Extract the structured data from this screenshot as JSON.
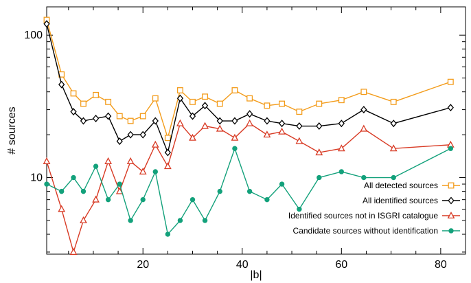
{
  "chart_data": {
    "type": "line",
    "xlabel": "|b|",
    "ylabel": "# sources",
    "xlim": [
      0.6,
      85
    ],
    "ylim": [
      2.9,
      158
    ],
    "yscale": "log",
    "grid": false,
    "legend_placement": "bottom-right",
    "x_ticks": [
      20,
      40,
      60,
      80
    ],
    "y_ticks": [
      10,
      100
    ],
    "series": [
      {
        "name": "All detected sources",
        "color": "#f39c1b",
        "marker": "square",
        "x": [
          0.6,
          3.6,
          6,
          8,
          10.5,
          13,
          15.3,
          17.5,
          20,
          22.5,
          25,
          27.5,
          30,
          32.5,
          35.5,
          38.5,
          41.5,
          45,
          48,
          51.5,
          55.5,
          60,
          64.5,
          70.5,
          82
        ],
        "y": [
          128,
          53,
          39,
          33,
          38,
          34,
          27,
          25,
          27,
          36,
          19,
          41,
          34,
          37,
          33,
          41,
          36,
          32,
          33,
          29,
          33,
          35,
          40,
          34,
          47
        ]
      },
      {
        "name": "All identified sources",
        "color": "#000000",
        "marker": "diamond",
        "x": [
          0.6,
          3.6,
          6,
          8,
          10.5,
          13,
          15.3,
          17.5,
          20,
          22.5,
          25,
          27.5,
          30,
          32.5,
          35.5,
          38.5,
          41.5,
          45,
          48,
          51.5,
          55.5,
          60,
          64.5,
          70.5,
          82
        ],
        "y": [
          120,
          45,
          29,
          25,
          26,
          27,
          18,
          20,
          20,
          25,
          15,
          36,
          27,
          32,
          25,
          25,
          28,
          25,
          24,
          23,
          23,
          24,
          30,
          24,
          31
        ]
      },
      {
        "name": "Identified sources not in ISGRI catalogue",
        "color": "#d83a24",
        "marker": "triangle",
        "x": [
          0.6,
          3.6,
          6,
          8,
          10.5,
          13,
          15.3,
          17.5,
          20,
          22.5,
          25,
          27.5,
          30,
          32.5,
          35.5,
          38.5,
          41.5,
          45,
          48,
          51.5,
          55.5,
          60,
          64.5,
          70.5,
          82
        ],
        "y": [
          13,
          6,
          3,
          5,
          7,
          13,
          8,
          13,
          11,
          17,
          12,
          24,
          19,
          23,
          22,
          19,
          24,
          20,
          21,
          18,
          15,
          16,
          22,
          16,
          17
        ]
      },
      {
        "name": "Candidate sources without identification",
        "color": "#13a17b",
        "marker": "circle",
        "x": [
          0.6,
          3.6,
          6,
          8,
          10.5,
          13,
          15.3,
          17.5,
          20,
          22.5,
          25,
          27.5,
          30,
          32.5,
          35.5,
          38.5,
          41.5,
          45,
          48,
          51.5,
          55.5,
          60,
          64.5,
          70.5,
          82
        ],
        "y": [
          9,
          8,
          10,
          8,
          12,
          7,
          9,
          5,
          7,
          11,
          4,
          5,
          7,
          5,
          8,
          16,
          8,
          7,
          9,
          6,
          10,
          11,
          10,
          10,
          16
        ]
      }
    ]
  }
}
